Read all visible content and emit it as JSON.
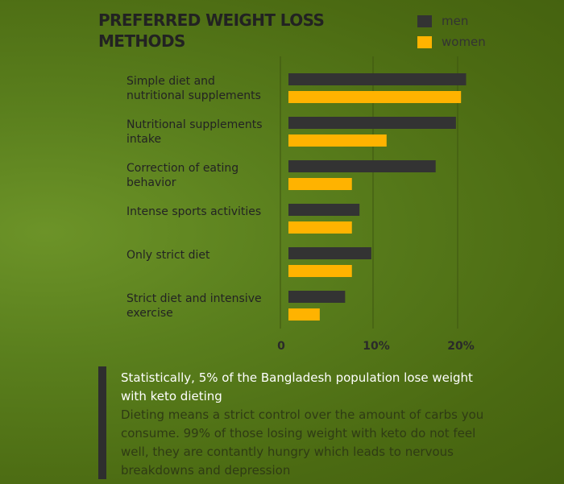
{
  "chart_data": {
    "type": "bar",
    "orientation": "horizontal",
    "title": "PREFERRED WEIGHT LOSS METHODS",
    "categories": [
      "Simple diet and nutritional supplements",
      "Nutritional supplements intake",
      "Correction of eating behavior",
      "Intense sports activities",
      "Only strict diet",
      "Strict diet and intensive exercise"
    ],
    "series": [
      {
        "name": "men",
        "color": "#333333",
        "values": [
          21,
          19.8,
          17.4,
          8.4,
          9.8,
          6.7
        ]
      },
      {
        "name": "women",
        "color": "#ffb300",
        "values": [
          20.4,
          11.6,
          7.5,
          7.5,
          7.5,
          3.7
        ]
      }
    ],
    "xlim": [
      0,
      20
    ],
    "xticks": [
      {
        "value": 0,
        "label": "0"
      },
      {
        "value": 10,
        "label": "10%"
      },
      {
        "value": 20,
        "label": "20%"
      }
    ],
    "grid": true,
    "legend_position": "top-right"
  },
  "callout": {
    "heading": "Statistically, 5% of the Bangladesh population lose weight with keto dieting",
    "body": "Dieting means a strict control over the amount of carbs you consume. 99% of those losing weight with keto do not feel well, they are contantly hungry which leads to nervous breakdowns and depression"
  }
}
